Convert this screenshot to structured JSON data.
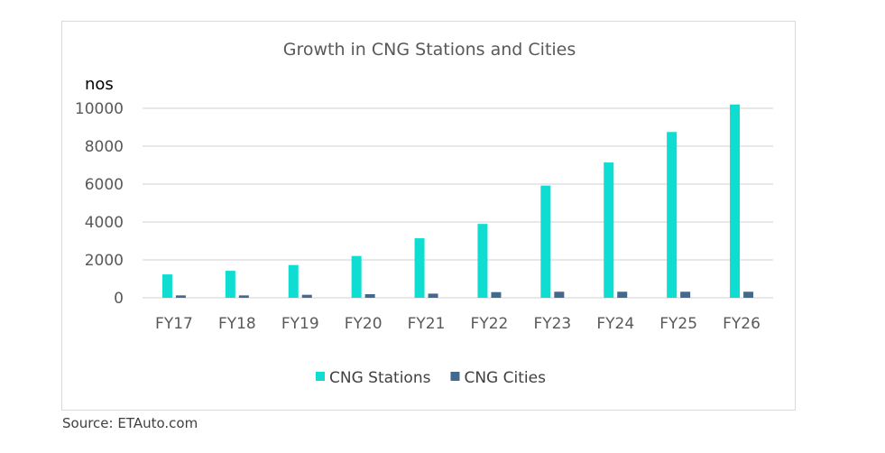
{
  "chart_data": {
    "type": "bar",
    "title": "Growth in CNG Stations and Cities",
    "ylabel": "nos",
    "xlabel": "",
    "categories": [
      "FY17",
      "FY18",
      "FY19",
      "FY20",
      "FY21",
      "FY22",
      "FY23",
      "FY24",
      "FY25",
      "FY26"
    ],
    "series": [
      {
        "name": "CNG Stations",
        "color": "#10DDD2",
        "values": [
          1233,
          1424,
          1730,
          2207,
          3141,
          3898,
          5920,
          7140,
          8750,
          10200
        ]
      },
      {
        "name": "CNG Cities",
        "color": "#44698F",
        "values": [
          127,
          127,
          158,
          190,
          220,
          300,
          320,
          320,
          320,
          320
        ]
      }
    ],
    "ylim": [
      0,
      10000
    ],
    "yticks": [
      0,
      2000,
      4000,
      6000,
      8000,
      10000
    ],
    "grid": true,
    "legend": "bottom"
  },
  "source": "Source: ETAuto.com"
}
